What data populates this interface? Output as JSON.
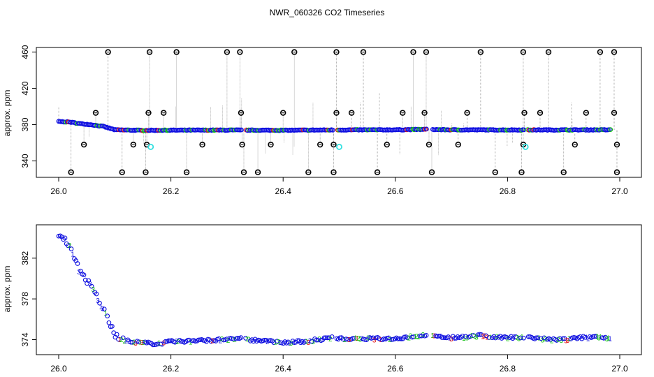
{
  "title": "NWR_060326  CO2 Timeseries",
  "colors": {
    "frame": "#000000",
    "spike": "#999999",
    "outlier": "#000000",
    "flag": "#33e0e0",
    "blue": "#1010e0",
    "green": "#10c010",
    "red": "#e01010"
  },
  "chart_data": [
    {
      "type": "scatter",
      "panel": "top",
      "xlabel": "",
      "ylabel": "approx. ppm",
      "xlim": [
        26.0,
        27.0
      ],
      "ylim": [
        325,
        462
      ],
      "xticks": [
        "26.0",
        "26.2",
        "26.4",
        "26.6",
        "26.8",
        "27.0"
      ],
      "yticks": [
        "340",
        "380",
        "420",
        "460"
      ],
      "grid": false,
      "gaps": [
        [
          26.327,
          26.333
        ],
        [
          26.49,
          26.495
        ],
        [
          26.657,
          26.665
        ],
        [
          26.83,
          26.835
        ]
      ],
      "baseline": [
        [
          26.0,
          383.5
        ],
        [
          26.02,
          382.8
        ],
        [
          26.04,
          381
        ],
        [
          26.06,
          379.8
        ],
        [
          26.08,
          378
        ],
        [
          26.1,
          374.3
        ],
        [
          26.15,
          373.7
        ],
        [
          26.2,
          373.9
        ],
        [
          26.3,
          374
        ],
        [
          26.4,
          373.8
        ],
        [
          26.5,
          374.2
        ],
        [
          26.6,
          374.3
        ],
        [
          26.65,
          374.8
        ],
        [
          26.7,
          374.3
        ],
        [
          26.8,
          374.2
        ],
        [
          26.9,
          374.2
        ],
        [
          26.98,
          374.3
        ]
      ],
      "outliers_high": [
        26.088,
        26.162,
        26.21,
        26.3,
        26.323,
        26.42,
        26.495,
        26.543,
        26.632,
        26.655,
        26.752,
        26.828,
        26.873,
        26.965,
        26.99
      ],
      "outliers_mid": [
        26.066,
        26.16,
        26.187,
        26.325,
        26.4,
        26.495,
        26.522,
        26.613,
        26.652,
        26.728,
        26.83,
        26.858,
        26.94,
        26.99
      ],
      "outliers_low_358": [
        26.045,
        26.133,
        26.157,
        26.256,
        26.327,
        26.378,
        26.466,
        26.49,
        26.585,
        26.66,
        26.712,
        26.828,
        26.92,
        26.995
      ],
      "outliers_low_327": [
        26.022,
        26.113,
        26.155,
        26.228,
        26.33,
        26.355,
        26.445,
        26.49,
        26.568,
        26.665,
        26.778,
        26.825,
        26.9,
        26.995
      ],
      "flagged": [
        [
          26.164,
          355.5
        ],
        [
          26.5,
          355.5
        ],
        [
          26.832,
          355.5
        ]
      ]
    },
    {
      "type": "scatter",
      "panel": "bottom",
      "xlabel": "",
      "ylabel": "approx. ppm",
      "xlim": [
        26.0,
        27.0
      ],
      "ylim": [
        372.8,
        385
      ],
      "xticks": [
        "26.0",
        "26.2",
        "26.4",
        "26.6",
        "26.8",
        "27.0"
      ],
      "yticks": [
        "374",
        "378",
        "382"
      ],
      "grid": false,
      "gaps": [
        [
          26.327,
          26.333
        ],
        [
          26.49,
          26.495
        ],
        [
          26.657,
          26.665
        ],
        [
          26.83,
          26.835
        ]
      ],
      "baseline": [
        [
          26.0,
          384.3
        ],
        [
          26.015,
          383.6
        ],
        [
          26.025,
          382.4
        ],
        [
          26.035,
          381
        ],
        [
          26.05,
          379.8
        ],
        [
          26.065,
          378.6
        ],
        [
          26.08,
          377
        ],
        [
          26.09,
          375.8
        ],
        [
          26.1,
          374.3
        ],
        [
          26.125,
          373.9
        ],
        [
          26.15,
          373.7
        ],
        [
          26.17,
          373.6
        ],
        [
          26.2,
          373.8
        ],
        [
          26.25,
          373.9
        ],
        [
          26.3,
          374
        ],
        [
          26.325,
          374.1
        ],
        [
          26.34,
          374
        ],
        [
          26.38,
          373.8
        ],
        [
          26.4,
          373.7
        ],
        [
          26.45,
          373.9
        ],
        [
          26.49,
          374.2
        ],
        [
          26.5,
          374.1
        ],
        [
          26.55,
          374.1
        ],
        [
          26.6,
          374.1
        ],
        [
          26.64,
          374.4
        ],
        [
          26.655,
          374.5
        ],
        [
          26.67,
          374.3
        ],
        [
          26.7,
          374.2
        ],
        [
          26.75,
          374.4
        ],
        [
          26.8,
          374.2
        ],
        [
          26.83,
          374.2
        ],
        [
          26.84,
          374.2
        ],
        [
          26.88,
          374
        ],
        [
          26.9,
          374
        ],
        [
          26.95,
          374.3
        ],
        [
          26.98,
          374.1
        ]
      ]
    }
  ]
}
